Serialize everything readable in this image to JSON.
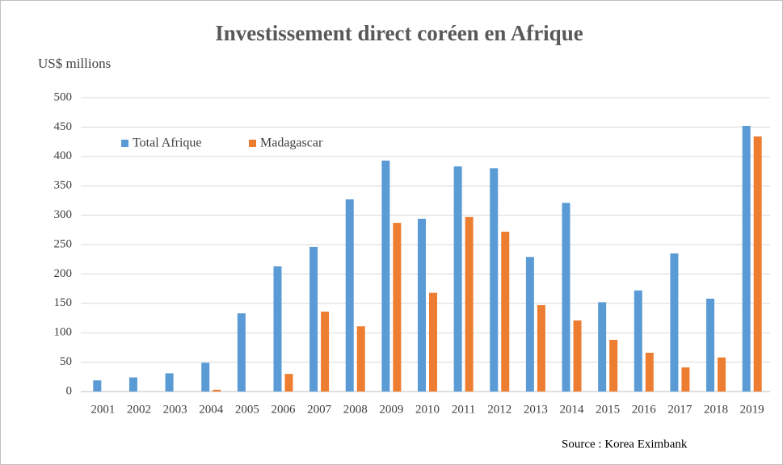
{
  "chart_data": {
    "type": "bar",
    "title": "Investissement direct coréen en Afrique",
    "y_axis_label": "US$ millions",
    "source": "Source : Korea Eximbank",
    "categories": [
      "2001",
      "2002",
      "2003",
      "2004",
      "2005",
      "2006",
      "2007",
      "2008",
      "2009",
      "2010",
      "2011",
      "2012",
      "2013",
      "2014",
      "2015",
      "2016",
      "2017",
      "2018",
      "2019"
    ],
    "series": [
      {
        "name": "Total Afrique",
        "color": "#5b9bd5",
        "values": [
          19,
          24,
          31,
          49,
          133,
          213,
          246,
          327,
          393,
          294,
          383,
          380,
          229,
          321,
          152,
          172,
          235,
          158,
          452
        ]
      },
      {
        "name": "Madagascar",
        "color": "#ed7d31",
        "values": [
          0,
          0,
          0,
          3,
          0,
          30,
          136,
          111,
          287,
          168,
          297,
          272,
          147,
          121,
          88,
          66,
          41,
          58,
          434
        ]
      }
    ],
    "ylim": [
      0,
      500
    ],
    "yticks": [
      0,
      50,
      100,
      150,
      200,
      250,
      300,
      350,
      400,
      450,
      500
    ],
    "grid": true,
    "legend": "top-left"
  }
}
